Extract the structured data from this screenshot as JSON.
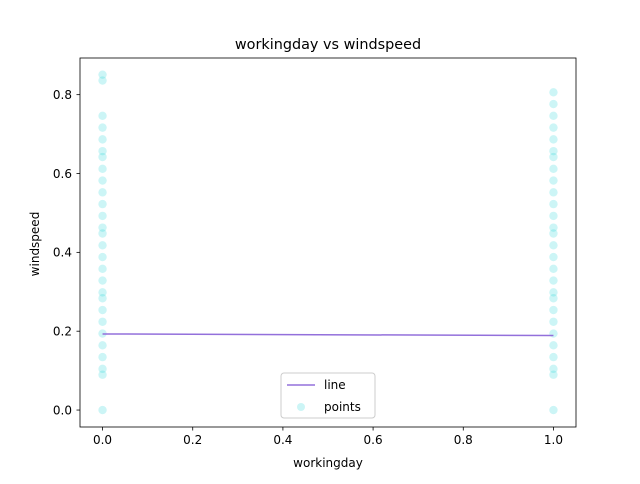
{
  "chart_data": {
    "type": "scatter",
    "title": "workingday vs windspeed",
    "xlabel": "workingday",
    "ylabel": "windspeed",
    "xlim": [
      -0.05,
      1.05
    ],
    "ylim": [
      -0.043,
      0.893
    ],
    "x_ticks": [
      {
        "value": 0.0,
        "label": "0.0"
      },
      {
        "value": 0.2,
        "label": "0.2"
      },
      {
        "value": 0.4,
        "label": "0.4"
      },
      {
        "value": 0.6,
        "label": "0.6"
      },
      {
        "value": 0.8,
        "label": "0.8"
      },
      {
        "value": 1.0,
        "label": "1.0"
      }
    ],
    "y_ticks": [
      {
        "value": 0.0,
        "label": "0.0"
      },
      {
        "value": 0.2,
        "label": "0.2"
      },
      {
        "value": 0.4,
        "label": "0.4"
      },
      {
        "value": 0.6,
        "label": "0.6"
      },
      {
        "value": 0.8,
        "label": "0.8"
      }
    ],
    "grid": false,
    "legend": {
      "placement": "lower-center",
      "entries": [
        {
          "label": "line",
          "kind": "line",
          "color": "#9370db"
        },
        {
          "label": "points",
          "kind": "marker",
          "color": "#00ced1"
        }
      ]
    },
    "series": [
      {
        "name": "line",
        "type": "line",
        "color": "#9370db",
        "x": [
          0,
          1
        ],
        "y": [
          0.193,
          0.189
        ]
      },
      {
        "name": "points",
        "type": "scatter",
        "color": "#00ced1",
        "alpha": 0.2,
        "points": [
          {
            "x": 0,
            "y": 0.0
          },
          {
            "x": 0,
            "y": 0.0896
          },
          {
            "x": 0,
            "y": 0.1045
          },
          {
            "x": 0,
            "y": 0.1343
          },
          {
            "x": 0,
            "y": 0.1642
          },
          {
            "x": 0,
            "y": 0.194
          },
          {
            "x": 0,
            "y": 0.2239
          },
          {
            "x": 0,
            "y": 0.2537
          },
          {
            "x": 0,
            "y": 0.2836
          },
          {
            "x": 0,
            "y": 0.2985
          },
          {
            "x": 0,
            "y": 0.3284
          },
          {
            "x": 0,
            "y": 0.3582
          },
          {
            "x": 0,
            "y": 0.3881
          },
          {
            "x": 0,
            "y": 0.4179
          },
          {
            "x": 0,
            "y": 0.4478
          },
          {
            "x": 0,
            "y": 0.4627
          },
          {
            "x": 0,
            "y": 0.4925
          },
          {
            "x": 0,
            "y": 0.5224
          },
          {
            "x": 0,
            "y": 0.5522
          },
          {
            "x": 0,
            "y": 0.5821
          },
          {
            "x": 0,
            "y": 0.6119
          },
          {
            "x": 0,
            "y": 0.6418
          },
          {
            "x": 0,
            "y": 0.6567
          },
          {
            "x": 0,
            "y": 0.6866
          },
          {
            "x": 0,
            "y": 0.7164
          },
          {
            "x": 0,
            "y": 0.7463
          },
          {
            "x": 0,
            "y": 0.8358
          },
          {
            "x": 0,
            "y": 0.8507
          },
          {
            "x": 1,
            "y": 0.0
          },
          {
            "x": 1,
            "y": 0.0896
          },
          {
            "x": 1,
            "y": 0.1045
          },
          {
            "x": 1,
            "y": 0.1343
          },
          {
            "x": 1,
            "y": 0.1642
          },
          {
            "x": 1,
            "y": 0.194
          },
          {
            "x": 1,
            "y": 0.2239
          },
          {
            "x": 1,
            "y": 0.2537
          },
          {
            "x": 1,
            "y": 0.2836
          },
          {
            "x": 1,
            "y": 0.2985
          },
          {
            "x": 1,
            "y": 0.3284
          },
          {
            "x": 1,
            "y": 0.3582
          },
          {
            "x": 1,
            "y": 0.3881
          },
          {
            "x": 1,
            "y": 0.4179
          },
          {
            "x": 1,
            "y": 0.4478
          },
          {
            "x": 1,
            "y": 0.4627
          },
          {
            "x": 1,
            "y": 0.4925
          },
          {
            "x": 1,
            "y": 0.5224
          },
          {
            "x": 1,
            "y": 0.5522
          },
          {
            "x": 1,
            "y": 0.5821
          },
          {
            "x": 1,
            "y": 0.6119
          },
          {
            "x": 1,
            "y": 0.6418
          },
          {
            "x": 1,
            "y": 0.6567
          },
          {
            "x": 1,
            "y": 0.6866
          },
          {
            "x": 1,
            "y": 0.7164
          },
          {
            "x": 1,
            "y": 0.7463
          },
          {
            "x": 1,
            "y": 0.7761
          },
          {
            "x": 1,
            "y": 0.806
          }
        ]
      }
    ]
  }
}
